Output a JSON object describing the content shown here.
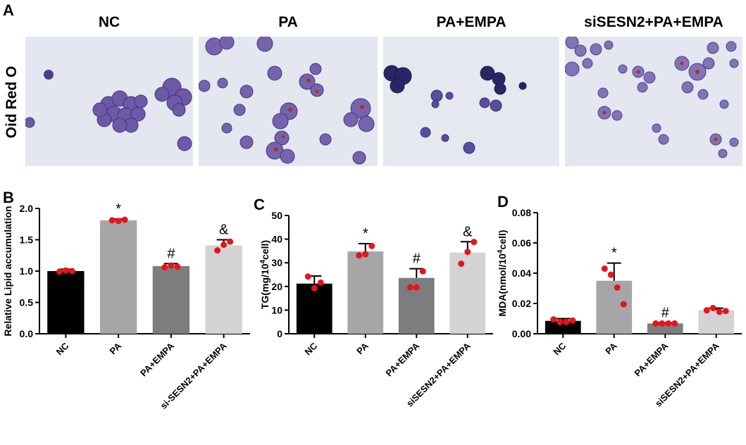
{
  "panel_a": {
    "letter": "A",
    "stain_label": "Oid Red O",
    "images": [
      {
        "title": "NC"
      },
      {
        "title": "PA"
      },
      {
        "title": "PA+EMPA"
      },
      {
        "title": "siSESN2+PA+EMPA"
      }
    ]
  },
  "colors": {
    "bar_fills": [
      "#000000",
      "#a6a6a8",
      "#7d7d7f",
      "#d3d3d3"
    ],
    "point": "#e8141b",
    "cell_purple": "#6d5aa6",
    "lipid_red": "#a8322a"
  },
  "chart_data": [
    {
      "letter": "B",
      "type": "bar",
      "categories": [
        "NC",
        "PA",
        "PA+EMPA",
        "si-SESN2+PA+EMPA"
      ],
      "values": [
        1.0,
        1.81,
        1.08,
        1.41
      ],
      "error": [
        0.03,
        0.02,
        0.04,
        0.09
      ],
      "points": [
        [
          0.99,
          1.01,
          1.0
        ],
        [
          1.81,
          1.8,
          1.82
        ],
        [
          1.06,
          1.09,
          1.07
        ],
        [
          1.33,
          1.42,
          1.47
        ]
      ],
      "annotations": [
        "",
        "*",
        "#",
        "&"
      ],
      "ylabel": "Relative Lipid accumulation",
      "ylim": [
        0,
        2.0
      ],
      "yticks": [
        "0.0",
        "0.5",
        "1.0",
        "1.5",
        "2.0"
      ]
    },
    {
      "letter": "C",
      "type": "bar",
      "categories": [
        "NC",
        "PA",
        "PA+EMPA",
        "siSESN2+PA+EMPA"
      ],
      "values": [
        21.2,
        34.8,
        23.6,
        34.3
      ],
      "error": [
        3.2,
        3.3,
        3.9,
        4.6
      ],
      "points": [
        [
          24.2,
          19.3,
          21.6
        ],
        [
          33.1,
          33.6,
          37.1
        ],
        [
          19.6,
          19.6,
          26.4
        ],
        [
          29.6,
          34.6,
          38.8
        ]
      ],
      "annotations": [
        "",
        "*",
        "#",
        "&"
      ],
      "ylabel": "TG(mg/10",
      "ylabel_sup": "4",
      "ylabel_tail": "cell)",
      "ylim": [
        0,
        50
      ],
      "yticks": [
        "0",
        "10",
        "20",
        "30",
        "40",
        "50"
      ]
    },
    {
      "letter": "D",
      "type": "bar",
      "categories": [
        "NC",
        "PA",
        "PA+EMPA",
        "siSESN2+PA+EMPA"
      ],
      "values": [
        0.0085,
        0.035,
        0.0068,
        0.0155
      ],
      "error": [
        0.0015,
        0.0117,
        0.0004,
        0.0014
      ],
      "points": [
        [
          0.0095,
          0.0078,
          0.0078,
          0.0088
        ],
        [
          0.043,
          0.039,
          0.0305,
          0.0195
        ],
        [
          0.0068,
          0.0068,
          0.0068,
          0.0068
        ],
        [
          0.0155,
          0.017,
          0.0145,
          0.015
        ]
      ],
      "annotations": [
        "",
        "*",
        "#",
        ""
      ],
      "ylabel": "MDA(nmol/10",
      "ylabel_sup": "4",
      "ylabel_tail": "cell)",
      "ylim": [
        0,
        0.08
      ],
      "yticks": [
        "0.00",
        "0.02",
        "0.04",
        "0.06",
        "0.08"
      ]
    }
  ]
}
